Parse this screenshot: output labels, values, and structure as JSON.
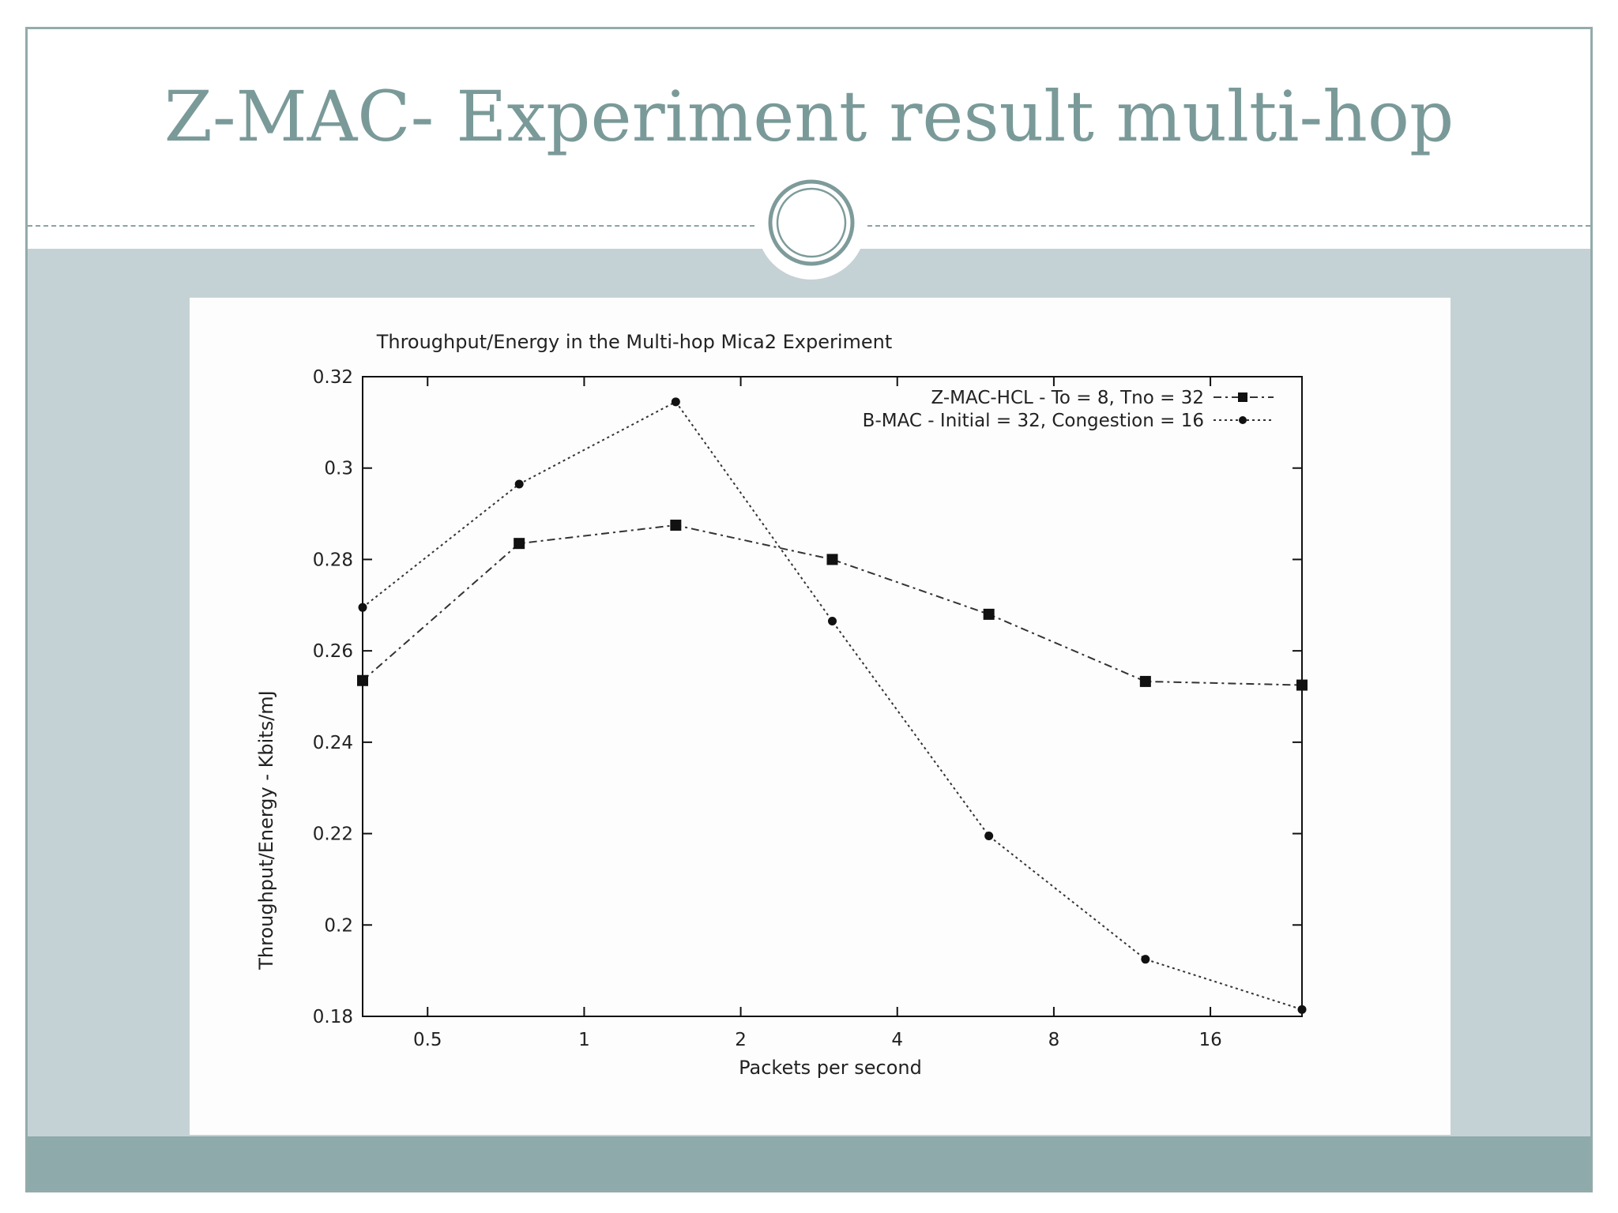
{
  "slide": {
    "title": "Z-MAC- Experiment result multi-hop"
  },
  "colors": {
    "title": "#7a9a99",
    "body_band": "#c5d2d5",
    "footer_band": "#8eaaab",
    "frame": "#93abab",
    "circle_ring": "#7d9b9a"
  },
  "chart_data": {
    "type": "line",
    "title": "Throughput/Energy in the Multi-hop Mica2 Experiment",
    "xlabel": "Packets per second",
    "ylabel": "Throughput/Energy - Kbits/mJ",
    "x_scale": "log2",
    "xlim": [
      0.375,
      24
    ],
    "ylim": [
      0.18,
      0.32
    ],
    "x_ticks": [
      0.5,
      1,
      2,
      4,
      8,
      16
    ],
    "x_tick_labels": [
      "0.5",
      "1",
      "2",
      "4",
      "8",
      "16"
    ],
    "y_ticks": [
      0.18,
      0.2,
      0.22,
      0.24,
      0.26,
      0.28,
      0.3,
      0.32
    ],
    "y_tick_labels": [
      "0.18",
      "0.2",
      "0.22",
      "0.24",
      "0.26",
      "0.28",
      "0.3",
      "0.32"
    ],
    "grid": false,
    "legend_position": "top-right",
    "series": [
      {
        "name": "Z-MAC-HCL - To = 8, Tno = 32",
        "marker": "square",
        "line_style": "dash-dot",
        "x": [
          0.375,
          0.75,
          1.5,
          3,
          6,
          12,
          24
        ],
        "values": [
          0.2535,
          0.2835,
          0.2875,
          0.28,
          0.268,
          0.2533,
          0.2525
        ]
      },
      {
        "name": "B-MAC - Initial = 32, Congestion = 16",
        "marker": "circle",
        "line_style": "dotted",
        "x": [
          0.375,
          0.75,
          1.5,
          3,
          6,
          12,
          24
        ],
        "values": [
          0.2695,
          0.2965,
          0.3145,
          0.2665,
          0.2195,
          0.1925,
          0.1815
        ]
      }
    ]
  }
}
